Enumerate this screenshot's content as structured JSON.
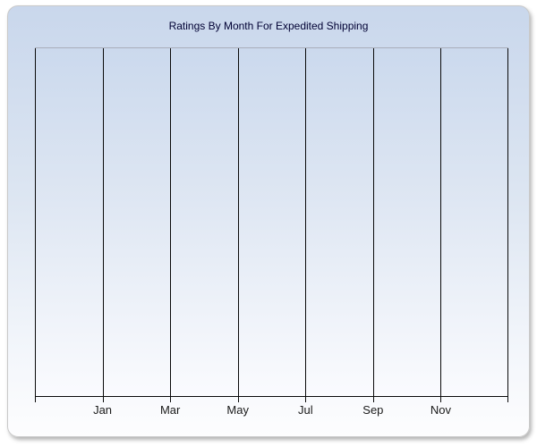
{
  "panel": {
    "title": "Ratings By Month For Expedited Shipping"
  },
  "chart_data": {
    "type": "line",
    "title": "Ratings By Month For Expedited Shipping",
    "xlabel": "",
    "ylabel": "",
    "x_tick_labels": [
      "Jan",
      "Mar",
      "May",
      "Jul",
      "Sep",
      "Nov"
    ],
    "x_gridlines": 8,
    "series": [],
    "grid": "vertical-only",
    "legend": "none",
    "y_tick_labels": []
  },
  "colors": {
    "panel_gradient_top": "#c9d7ec",
    "panel_gradient_bottom": "#fdfdfe",
    "plot_gradient_top": "#cbd9ed",
    "plot_gradient_bottom": "#fafbfe",
    "title_text": "#000033",
    "axis_and_gridline": "#0a0a0a",
    "plot_top_border": "#a8aeba",
    "tick_label_text": "#1a1a1a",
    "panel_border": "#c9c9c9"
  }
}
